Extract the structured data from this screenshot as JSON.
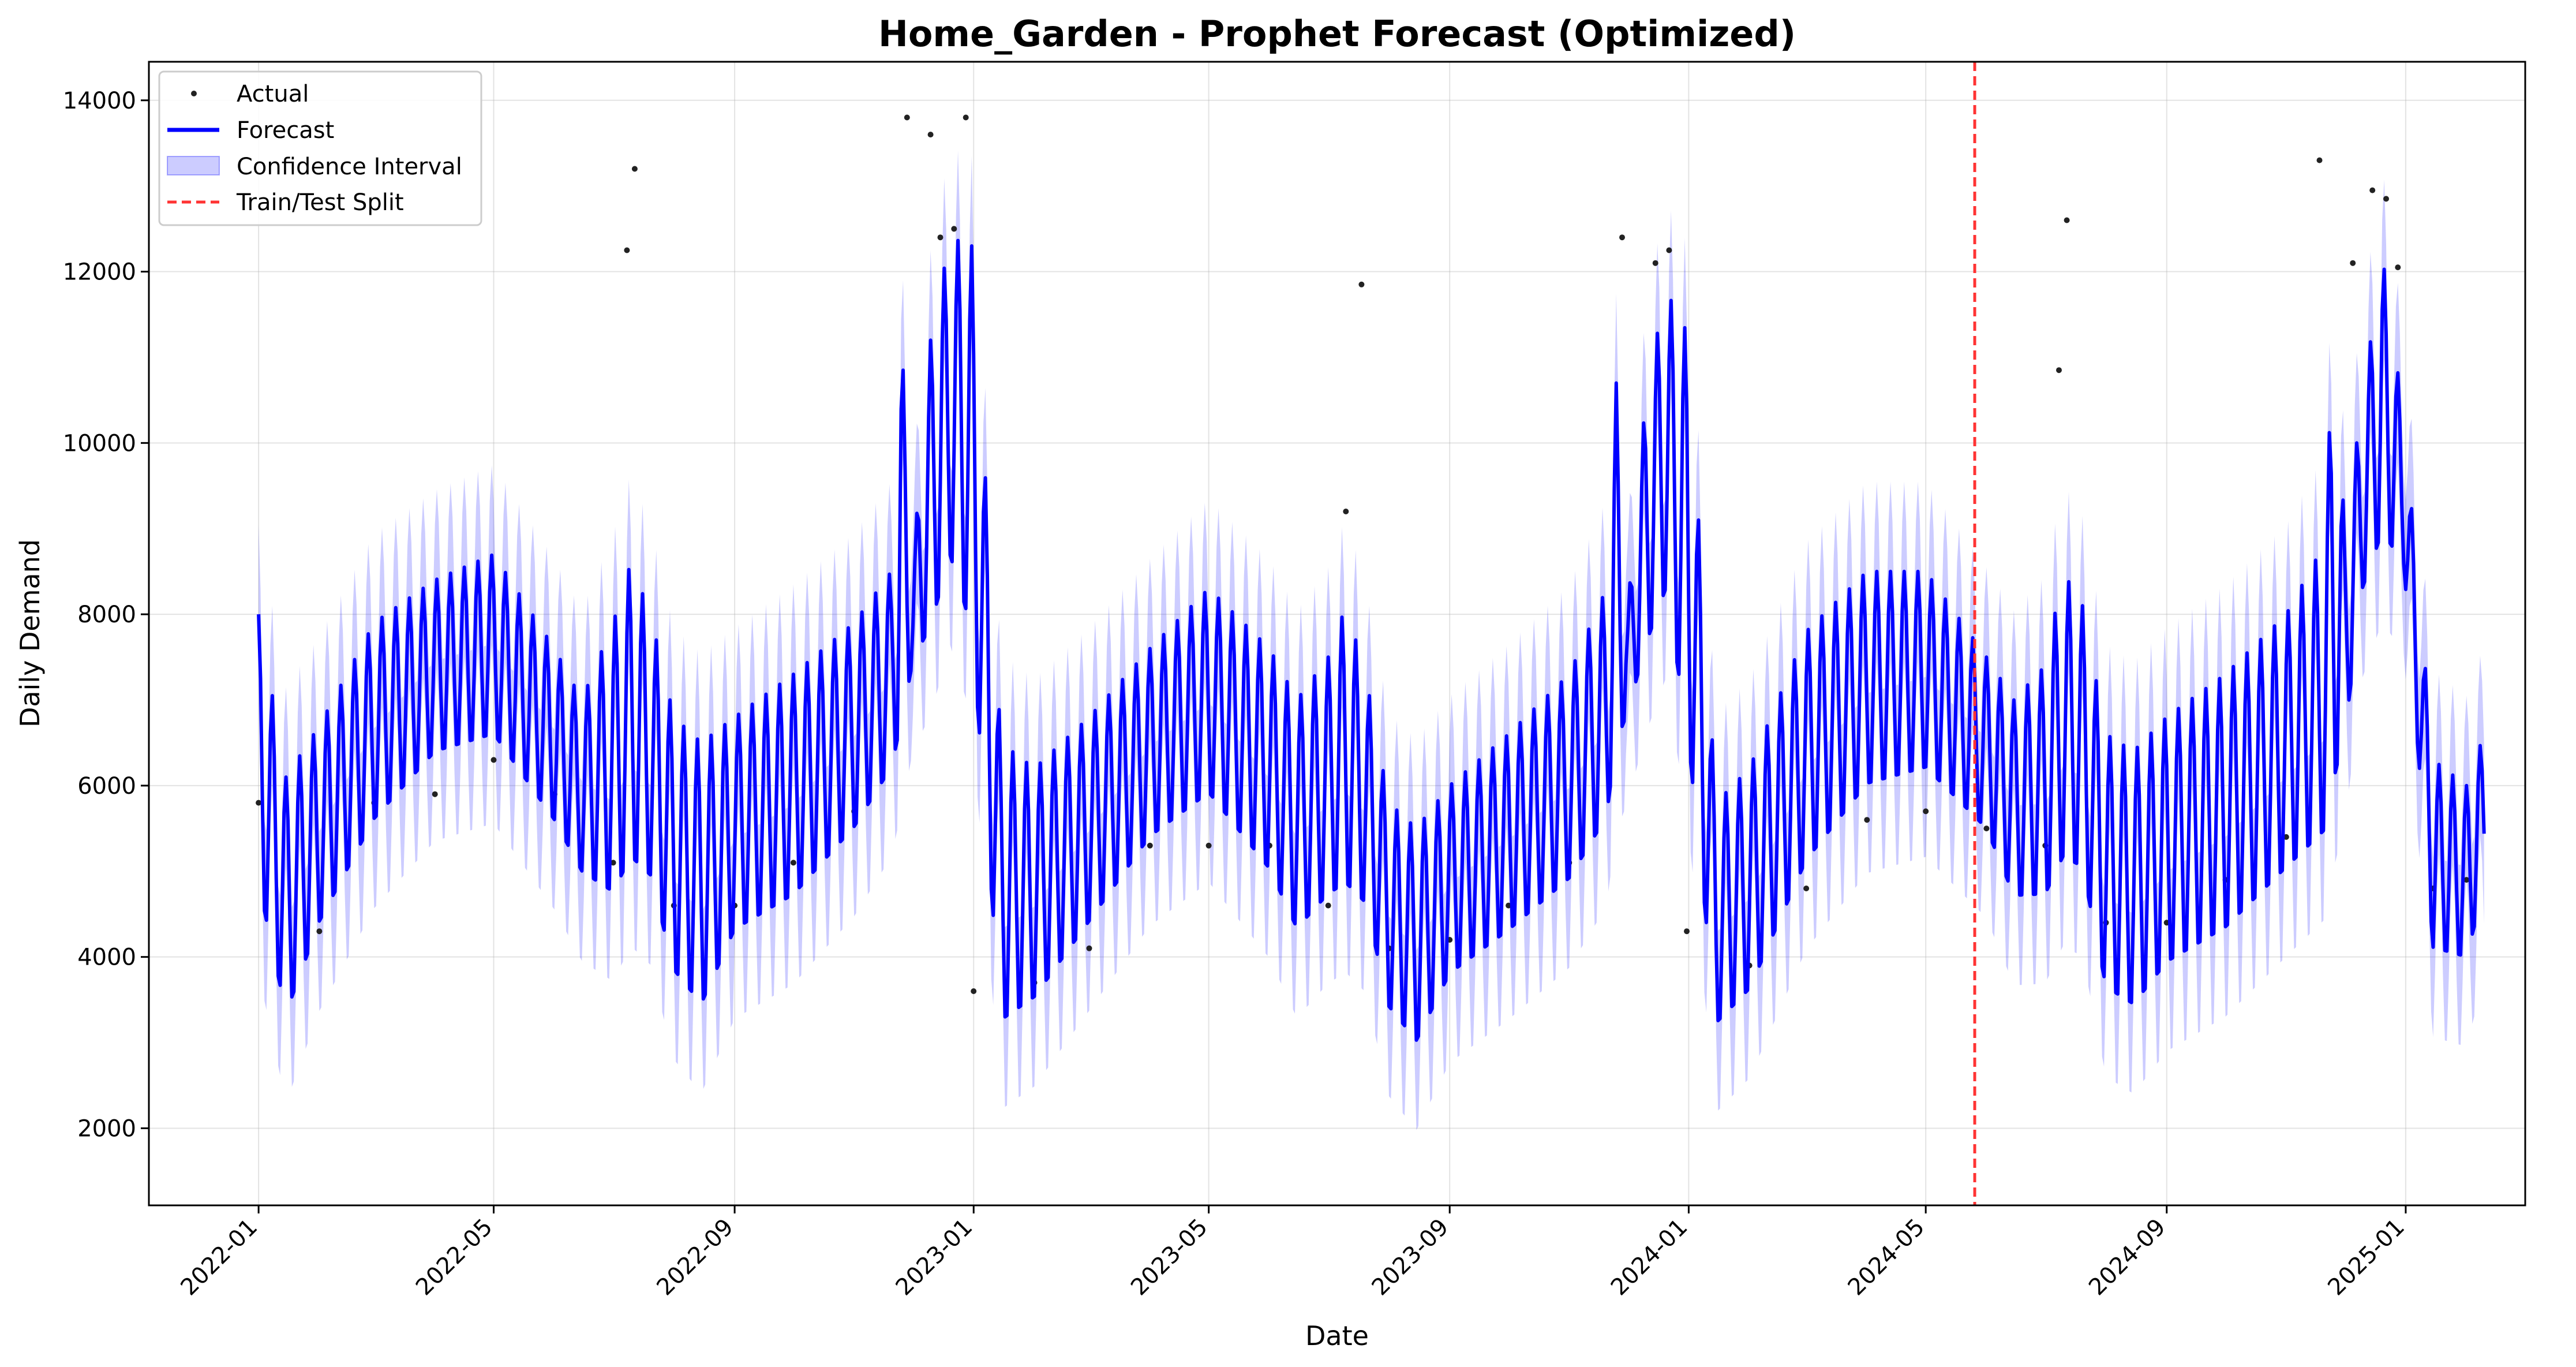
{
  "chart_data": {
    "type": "line",
    "title": "Home_Garden - Prophet Forecast (Optimized)",
    "xlabel": "Date",
    "ylabel": "Daily Demand",
    "xlim": [
      "2021-11-06",
      "2025-03-03"
    ],
    "ylim": [
      1100,
      14450
    ],
    "grid": true,
    "legend_position": "top-left",
    "x_ticks": [
      "2022-01",
      "2022-05",
      "2022-09",
      "2023-01",
      "2023-05",
      "2023-09",
      "2024-01",
      "2024-05",
      "2024-09",
      "2025-01"
    ],
    "y_ticks": [
      2000,
      4000,
      6000,
      8000,
      10000,
      12000,
      14000
    ],
    "colors": {
      "actual": "#222222",
      "forecast": "#0000ff",
      "confidence_interval": "#0000ff",
      "split": "#ff3333"
    },
    "legend": [
      {
        "label": "Actual",
        "style": "dot"
      },
      {
        "label": "Forecast",
        "style": "line"
      },
      {
        "label": "Confidence Interval",
        "style": "band"
      },
      {
        "label": "Train/Test Split",
        "style": "dashed"
      }
    ],
    "train_test_split": "2024-05-26",
    "weekly_pattern": {
      "peak": 1.0,
      "trough": 0.5
    },
    "series": [
      {
        "name": "Forecast",
        "x": [
          "2022-01-01",
          "2022-01-15",
          "2022-02-01",
          "2022-03-01",
          "2022-04-01",
          "2022-05-01",
          "2022-06-01",
          "2022-06-15",
          "2022-07-01",
          "2022-07-10",
          "2022-07-20",
          "2022-08-01",
          "2022-08-15",
          "2022-09-01",
          "2022-10-01",
          "2022-11-01",
          "2022-11-20",
          "2022-11-25",
          "2022-12-01",
          "2022-12-10",
          "2022-12-20",
          "2022-12-31",
          "2023-01-15",
          "2023-02-01",
          "2023-03-01",
          "2023-04-01",
          "2023-05-01",
          "2023-06-01",
          "2023-06-15",
          "2023-07-01",
          "2023-07-10",
          "2023-07-20",
          "2023-08-01",
          "2023-08-15",
          "2023-09-01",
          "2023-10-01",
          "2023-11-01",
          "2023-11-20",
          "2023-11-25",
          "2023-12-01",
          "2023-12-10",
          "2023-12-20",
          "2023-12-31",
          "2024-01-15",
          "2024-02-01",
          "2024-03-01",
          "2024-04-01",
          "2024-05-01",
          "2024-06-01",
          "2024-06-15",
          "2024-07-01",
          "2024-07-10",
          "2024-07-20",
          "2024-08-01",
          "2024-08-15",
          "2024-09-01",
          "2024-10-01",
          "2024-11-01",
          "2024-11-20",
          "2024-11-25",
          "2024-12-01",
          "2024-12-10",
          "2024-12-20",
          "2024-12-31",
          "2025-01-15",
          "2025-02-01",
          "2025-02-10"
        ],
        "peaks": [
          8000,
          6100,
          6700,
          7900,
          8400,
          8700,
          7600,
          7000,
          7900,
          8600,
          8000,
          6800,
          6500,
          6800,
          7300,
          7900,
          8500,
          11300,
          8600,
          11200,
          12400,
          12300,
          6500,
          6200,
          6800,
          7600,
          8300,
          7600,
          7000,
          7500,
          8100,
          7300,
          5800,
          5500,
          6000,
          6600,
          7300,
          8300,
          10700,
          8100,
          10500,
          11800,
          11300,
          5800,
          6200,
          7800,
          8500,
          8500,
          7500,
          7000,
          7400,
          8500,
          8100,
          6600,
          6400,
          6800,
          7300,
          8000,
          8800,
          11000,
          9000,
          10500,
          12200,
          10300,
          6300,
          6000,
          6600
        ],
        "troughs": [
          4700,
          3200,
          4300,
          5500,
          6300,
          6500,
          5500,
          4900,
          4600,
          5000,
          4800,
          3700,
          3300,
          4200,
          4600,
          5400,
          6100,
          6500,
          7400,
          7700,
          8500,
          7600,
          3100,
          3400,
          4300,
          5300,
          5800,
          4900,
          4200,
          4600,
          4700,
          4500,
          3300,
          2900,
          3700,
          4200,
          4800,
          5500,
          6300,
          6800,
          7500,
          8100,
          6500,
          3100,
          3500,
          5000,
          5900,
          6100,
          5400,
          4600,
          4600,
          5000,
          4900,
          3500,
          3300,
          3800,
          4200,
          4900,
          5300,
          5800,
          6500,
          8200,
          8800,
          8500,
          4000,
          3900,
          4700
        ]
      },
      {
        "name": "Actual",
        "x": [
          "2022-01-01",
          "2022-02-01",
          "2022-03-01",
          "2022-04-01",
          "2022-05-01",
          "2022-06-01",
          "2022-07-01",
          "2022-07-08",
          "2022-07-12",
          "2022-08-01",
          "2022-09-01",
          "2022-10-01",
          "2022-11-01",
          "2022-11-28",
          "2022-12-10",
          "2022-12-15",
          "2022-12-22",
          "2022-12-28",
          "2023-01-01",
          "2023-02-01",
          "2023-03-01",
          "2023-04-01",
          "2023-05-01",
          "2023-06-01",
          "2023-07-01",
          "2023-07-10",
          "2023-07-18",
          "2023-08-01",
          "2023-09-01",
          "2023-10-01",
          "2023-11-01",
          "2023-11-28",
          "2023-12-15",
          "2023-12-22",
          "2023-12-31",
          "2024-02-01",
          "2024-03-01",
          "2024-04-01",
          "2024-05-01",
          "2024-06-01",
          "2024-07-01",
          "2024-07-08",
          "2024-07-12",
          "2024-08-01",
          "2024-09-01",
          "2024-10-01",
          "2024-11-01",
          "2024-11-18",
          "2024-12-05",
          "2024-12-15",
          "2024-12-22",
          "2024-12-28",
          "2025-01-15",
          "2025-02-01"
        ],
        "values": [
          5800,
          4300,
          5800,
          5900,
          6300,
          5900,
          5100,
          12250,
          13200,
          4600,
          4600,
          5100,
          5700,
          13800,
          13600,
          12400,
          12500,
          13800,
          3600,
          3700,
          4100,
          5300,
          5300,
          5300,
          4600,
          9200,
          11850,
          4100,
          4200,
          4600,
          5100,
          12400,
          12100,
          12250,
          4300,
          3900,
          4800,
          5600,
          5700,
          5500,
          5300,
          10850,
          12600,
          4400,
          4400,
          4900,
          5400,
          13300,
          12100,
          12950,
          12850,
          12050,
          4800,
          4900
        ]
      }
    ]
  }
}
